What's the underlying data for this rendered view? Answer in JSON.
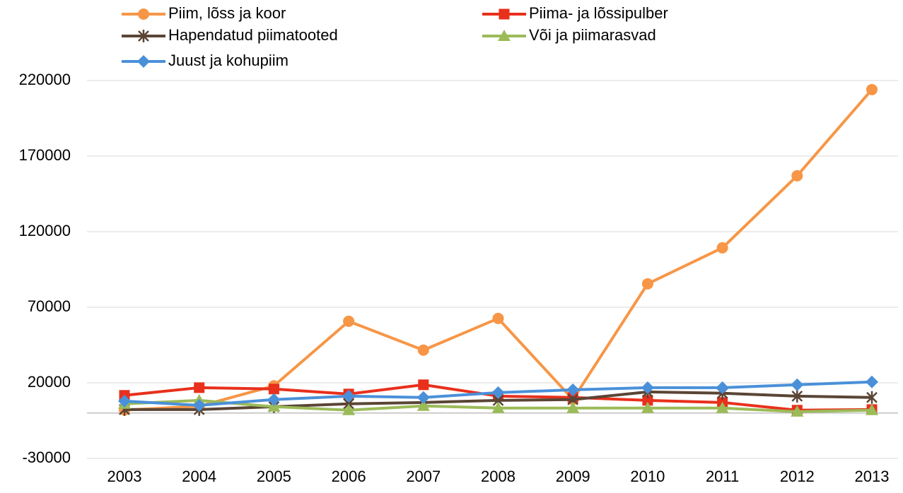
{
  "chart_data": {
    "type": "line",
    "categories": [
      "2003",
      "2004",
      "2005",
      "2006",
      "2007",
      "2008",
      "2009",
      "2010",
      "2011",
      "2012",
      "2013"
    ],
    "series": [
      {
        "name": "Piim, lõss ja koor",
        "color": "#f79646",
        "marker": "circle",
        "values": [
          2000,
          4500,
          18000,
          60700,
          41600,
          62600,
          9000,
          85500,
          109300,
          157000,
          214000
        ]
      },
      {
        "name": "Piima- ja lõssipulber",
        "color": "#e8301c",
        "marker": "square",
        "values": [
          11700,
          16800,
          15900,
          12600,
          18700,
          11200,
          10300,
          8400,
          7000,
          1900,
          2300
        ]
      },
      {
        "name": "Hapendatud piimatooted",
        "color": "#5a4535",
        "marker": "star",
        "values": [
          2300,
          2300,
          4200,
          6100,
          7000,
          8400,
          8900,
          14000,
          13100,
          11200,
          10300
        ]
      },
      {
        "name": "Või ja piimarasvad",
        "color": "#9bbb59",
        "marker": "triangle",
        "values": [
          6100,
          8400,
          4200,
          1900,
          4700,
          3300,
          3300,
          3300,
          3300,
          900,
          1900
        ]
      },
      {
        "name": "Juust ja kohupiim",
        "color": "#4a90d9",
        "marker": "diamond",
        "values": [
          7900,
          5100,
          8900,
          11200,
          10300,
          13500,
          15400,
          16800,
          16800,
          18700,
          20600
        ]
      }
    ],
    "ylim": [
      -30000,
      220000
    ],
    "yticks": [
      -30000,
      20000,
      70000,
      120000,
      170000,
      220000
    ],
    "grid": true
  }
}
